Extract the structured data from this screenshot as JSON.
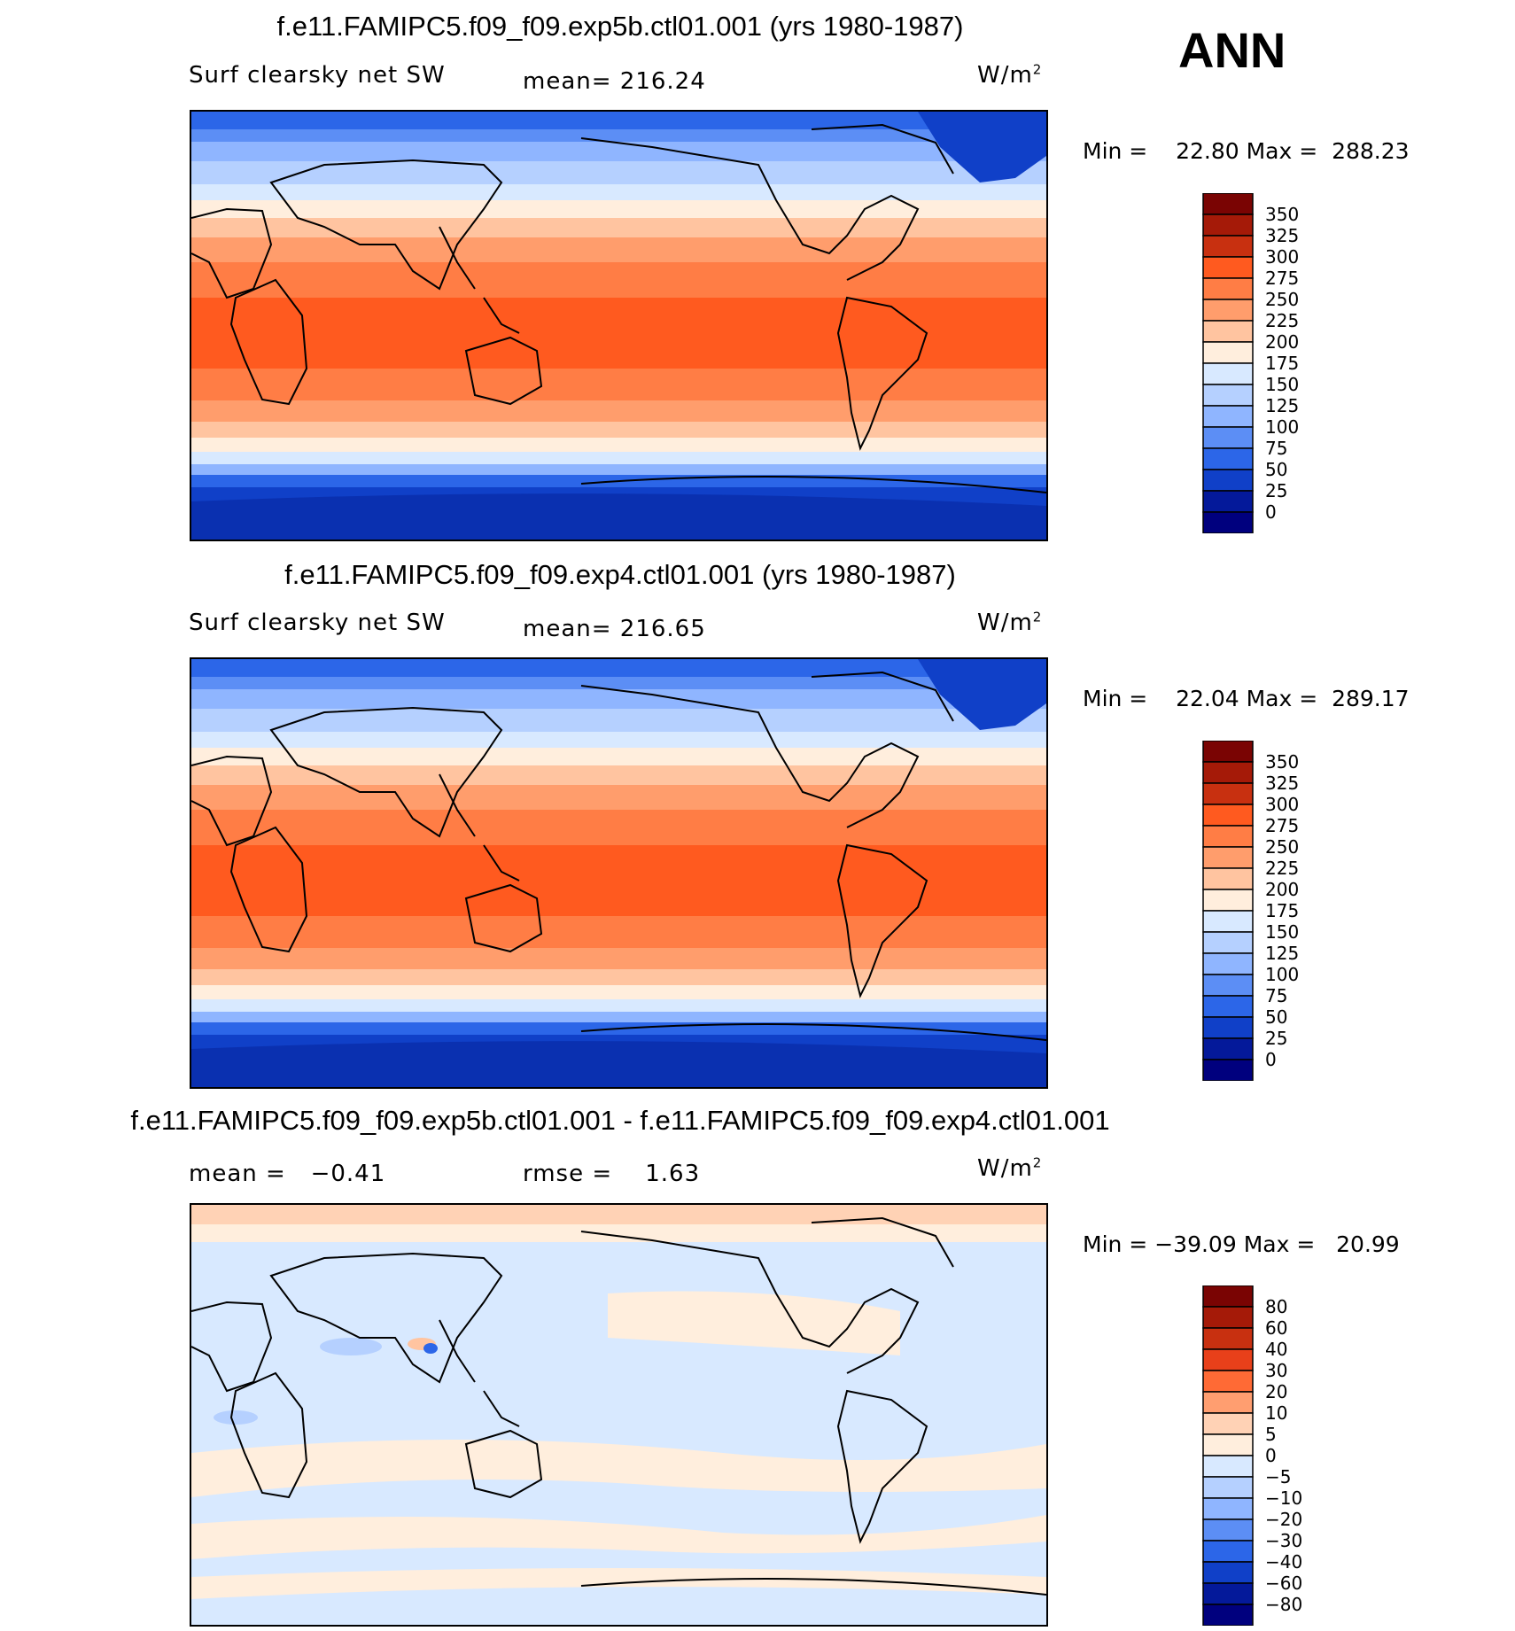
{
  "season": "ANN",
  "chart_data": [
    {
      "type": "heatmap",
      "title": "f.e11.FAMIPC5.f09_f09.exp5b.ctl01.001 (yrs 1980-1987)",
      "field_label": "Surf clearsky net SW",
      "mean_text": "mean=  216.24",
      "units_base": "W/m",
      "units_exp": "2",
      "min_label": "Min =",
      "min_value": "22.80",
      "max_label": "Max =",
      "max_value": "288.23",
      "colorbar_levels": [
        "350",
        "325",
        "300",
        "275",
        "250",
        "225",
        "200",
        "175",
        "150",
        "125",
        "100",
        "75",
        "50",
        "25",
        "0"
      ],
      "colorbar_colors": [
        "#7a0403",
        "#a51a08",
        "#c83010",
        "#ff5a1f",
        "#ff7d45",
        "#ff9d6c",
        "#ffc4a0",
        "#ffeedd",
        "#d8e9ff",
        "#b5d0ff",
        "#8fb5ff",
        "#5c8ef5",
        "#2c66e8",
        "#1040c8",
        "#04199a",
        "#00007e"
      ]
    },
    {
      "type": "heatmap",
      "title": "f.e11.FAMIPC5.f09_f09.exp4.ctl01.001 (yrs 1980-1987)",
      "field_label": "Surf clearsky net SW",
      "mean_text": "mean=  216.65",
      "units_base": "W/m",
      "units_exp": "2",
      "min_label": "Min =",
      "min_value": "22.04",
      "max_label": "Max =",
      "max_value": "289.17",
      "colorbar_levels": [
        "350",
        "325",
        "300",
        "275",
        "250",
        "225",
        "200",
        "175",
        "150",
        "125",
        "100",
        "75",
        "50",
        "25",
        "0"
      ],
      "colorbar_colors": [
        "#7a0403",
        "#a51a08",
        "#c83010",
        "#ff5a1f",
        "#ff7d45",
        "#ff9d6c",
        "#ffc4a0",
        "#ffeedd",
        "#d8e9ff",
        "#b5d0ff",
        "#8fb5ff",
        "#5c8ef5",
        "#2c66e8",
        "#1040c8",
        "#04199a",
        "#00007e"
      ]
    },
    {
      "type": "heatmap",
      "title": "f.e11.FAMIPC5.f09_f09.exp5b.ctl01.001 - f.e11.FAMIPC5.f09_f09.exp4.ctl01.001",
      "mean_label": "mean =",
      "mean_value": "−0.41",
      "rmse_label": "rmse =",
      "rmse_value": "1.63",
      "units_base": "W/m",
      "units_exp": "2",
      "min_label": "Min =",
      "min_value": "−39.09",
      "max_label": "Max =",
      "max_value": "20.99",
      "colorbar_levels": [
        "80",
        "60",
        "40",
        "30",
        "20",
        "10",
        "5",
        "0",
        "−5",
        "−10",
        "−20",
        "−30",
        "−40",
        "−60",
        "−80"
      ],
      "colorbar_colors": [
        "#7a0403",
        "#a51a08",
        "#c83010",
        "#e8401a",
        "#ff6a35",
        "#ff9e70",
        "#ffd2b5",
        "#ffeedd",
        "#d8e9ff",
        "#b5d0ff",
        "#8fb5ff",
        "#5c8ef5",
        "#2c66e8",
        "#1040c8",
        "#04199a",
        "#00007e"
      ]
    }
  ]
}
